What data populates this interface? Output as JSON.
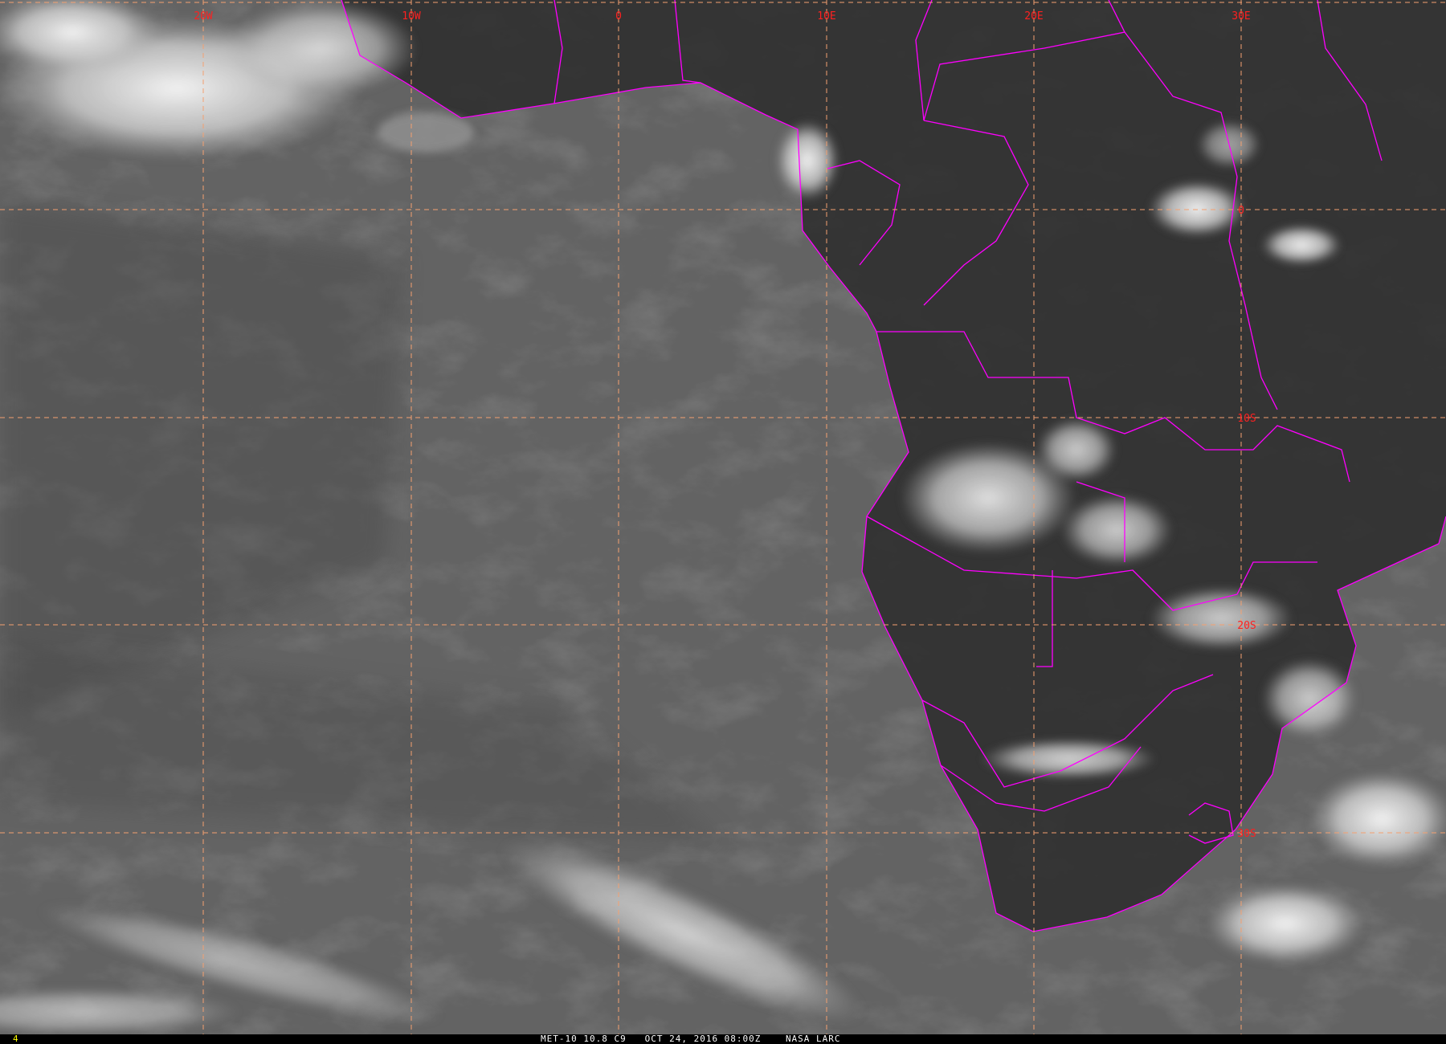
{
  "image": {
    "type": "satellite-infrared",
    "coastline_color": "#ff00ff",
    "grid_color": "#f4a070",
    "label_color": "#ff2020"
  },
  "grid": {
    "longitude_labels": [
      "20W",
      "10W",
      "0",
      "10E",
      "20E",
      "30E"
    ],
    "latitude_labels": [
      "0",
      "10S",
      "20S",
      "30S"
    ]
  },
  "status_bar": {
    "frame_number": "4",
    "satellite": "MET-10 10.8 C9",
    "datetime": "OCT 24, 2016 08:00Z",
    "source": "NASA LARC"
  }
}
